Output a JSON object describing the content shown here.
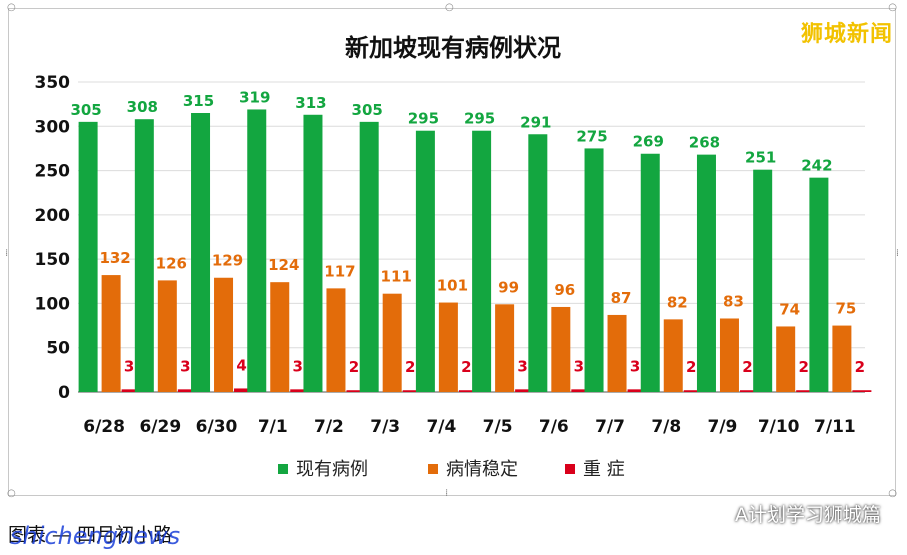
{
  "brand_text": "狮城新闻",
  "caption_text": "图表 — 四月初小路",
  "watermark_text": "shichengnews",
  "wechat_label": "A计划学习狮城篇",
  "wechat_icon": "wechat-icon",
  "chart_data": {
    "type": "bar",
    "title": "新加坡现有病例状况",
    "categories": [
      "6/28",
      "6/29",
      "6/30",
      "7/1",
      "7/2",
      "7/3",
      "7/4",
      "7/5",
      "7/6",
      "7/7",
      "7/8",
      "7/9",
      "7/10",
      "7/11"
    ],
    "series": [
      {
        "name": "现有病例",
        "color": "#13a640",
        "label_color": "#13a640",
        "values": [
          305,
          308,
          315,
          319,
          313,
          305,
          295,
          295,
          291,
          275,
          269,
          268,
          251,
          242
        ]
      },
      {
        "name": "病情稳定",
        "color": "#e36c0a",
        "label_color": "#e36c0a",
        "values": [
          132,
          126,
          129,
          124,
          117,
          111,
          101,
          99,
          96,
          87,
          82,
          83,
          74,
          75
        ]
      },
      {
        "name": "重 症",
        "color": "#d9001b",
        "label_color": "#d9001b",
        "values": [
          3,
          3,
          4,
          3,
          2,
          2,
          2,
          3,
          3,
          3,
          2,
          2,
          2,
          2
        ]
      }
    ],
    "ylim": [
      0,
      350
    ],
    "yticks": [
      0,
      50,
      100,
      150,
      200,
      250,
      300,
      350
    ],
    "xlabel": "",
    "ylabel": "",
    "grid": true,
    "legend": "bottom"
  }
}
